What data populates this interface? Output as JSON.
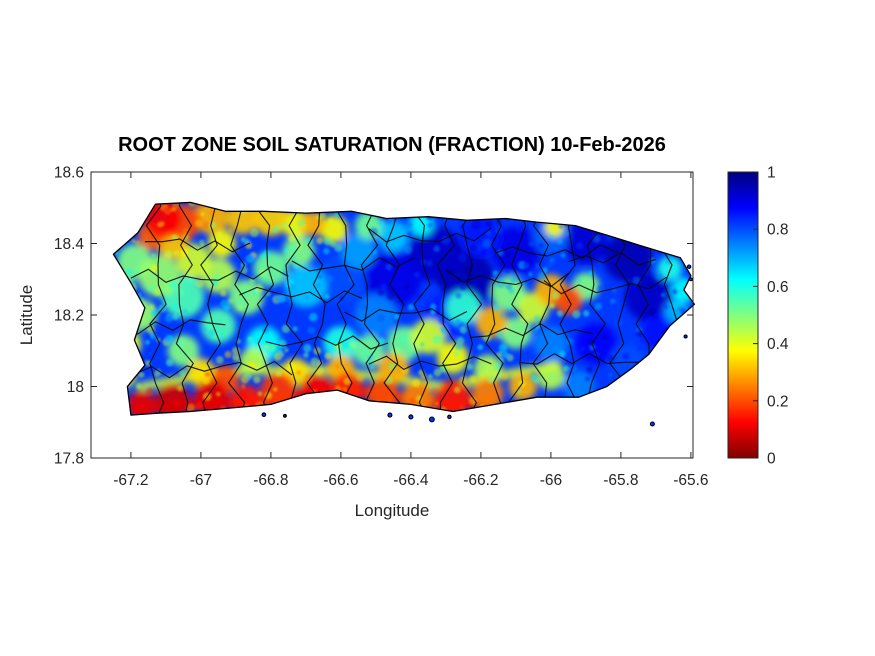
{
  "figure": {
    "background": "#ffffff",
    "axis_color": "#262626",
    "title_color": "#000000"
  },
  "chart_data": {
    "type": "heatmap",
    "subtype": "geographic-map",
    "map_region": "Puerto Rico",
    "title": "ROOT ZONE SOIL SATURATION (FRACTION) 10-Feb-2026",
    "xlabel": "Longitude",
    "ylabel": "Latitude",
    "xlim": [
      -67.314,
      -65.594
    ],
    "ylim": [
      17.8,
      18.6
    ],
    "xticks": [
      -67.2,
      -67,
      -66.8,
      -66.6,
      -66.4,
      -66.2,
      -66,
      -65.8,
      -65.6
    ],
    "xtick_labels": [
      "-67.2",
      "-67",
      "-66.8",
      "-66.6",
      "-66.4",
      "-66.2",
      "-66",
      "-65.8",
      "-65.6"
    ],
    "yticks": [
      18.6,
      18.4,
      18.2,
      18,
      17.8
    ],
    "ytick_labels": [
      "18.6",
      "18.4",
      "18.2",
      "18",
      "17.8"
    ],
    "grid": false,
    "colorbar": {
      "min": 0,
      "max": 1,
      "ticks": [
        1,
        0.8,
        0.6,
        0.4,
        0.2,
        0
      ],
      "tick_labels": [
        "1",
        "0.8",
        "0.6",
        "0.4",
        "0.2",
        "0"
      ],
      "colormap": "jet-reversed (0=dark red, 1=dark blue)",
      "position": "right"
    },
    "base_saturation": 0.82,
    "island_outline": [
      [
        -67.25,
        18.37
      ],
      [
        -67.18,
        18.43
      ],
      [
        -67.13,
        18.51
      ],
      [
        -67.03,
        18.515
      ],
      [
        -66.93,
        18.49
      ],
      [
        -66.82,
        18.49
      ],
      [
        -66.7,
        18.485
      ],
      [
        -66.57,
        18.49
      ],
      [
        -66.47,
        18.47
      ],
      [
        -66.35,
        18.475
      ],
      [
        -66.24,
        18.465
      ],
      [
        -66.13,
        18.47
      ],
      [
        -66.04,
        18.46
      ],
      [
        -65.93,
        18.45
      ],
      [
        -65.83,
        18.42
      ],
      [
        -65.73,
        18.39
      ],
      [
        -65.63,
        18.36
      ],
      [
        -65.6,
        18.31
      ],
      [
        -65.62,
        18.27
      ],
      [
        -65.59,
        18.23
      ],
      [
        -65.66,
        18.17
      ],
      [
        -65.72,
        18.09
      ],
      [
        -65.77,
        18.05
      ],
      [
        -65.84,
        18.0
      ],
      [
        -65.92,
        17.97
      ],
      [
        -66.04,
        17.97
      ],
      [
        -66.16,
        17.95
      ],
      [
        -66.28,
        17.93
      ],
      [
        -66.4,
        17.95
      ],
      [
        -66.52,
        17.96
      ],
      [
        -66.61,
        17.99
      ],
      [
        -66.7,
        17.98
      ],
      [
        -66.8,
        17.95
      ],
      [
        -66.91,
        17.94
      ],
      [
        -67.03,
        17.93
      ],
      [
        -67.13,
        17.925
      ],
      [
        -67.2,
        17.92
      ],
      [
        -67.21,
        18.0
      ],
      [
        -67.16,
        18.06
      ],
      [
        -67.19,
        18.13
      ],
      [
        -67.16,
        18.22
      ],
      [
        -67.2,
        18.29
      ],
      [
        -67.25,
        18.37
      ]
    ],
    "islets": [
      [
        -66.46,
        17.92,
        2
      ],
      [
        -66.4,
        17.915,
        2
      ],
      [
        -66.34,
        17.908,
        2.4
      ],
      [
        -66.29,
        17.915,
        1.7
      ],
      [
        -65.71,
        17.895,
        2
      ],
      [
        -66.82,
        17.921,
        1.8
      ],
      [
        -66.76,
        17.918,
        1.4
      ],
      [
        -65.605,
        18.335,
        1.7
      ],
      [
        -65.6,
        18.3,
        1.4
      ],
      [
        -65.615,
        18.14,
        1.5
      ]
    ],
    "heat_blobs": [
      [
        -67.11,
        18.47,
        0.12,
        0.055
      ],
      [
        -67.14,
        18.42,
        0.22,
        0.04
      ],
      [
        -67.05,
        18.46,
        0.2,
        0.05
      ],
      [
        -66.97,
        18.475,
        0.3,
        0.05
      ],
      [
        -66.88,
        18.47,
        0.32,
        0.045
      ],
      [
        -66.8,
        18.47,
        0.33,
        0.05
      ],
      [
        -66.73,
        18.455,
        0.38,
        0.04
      ],
      [
        -67.08,
        18.4,
        0.32,
        0.045
      ],
      [
        -67.19,
        18.35,
        0.5,
        0.05
      ],
      [
        -67.23,
        18.28,
        0.52,
        0.04
      ],
      [
        -67.12,
        18.31,
        0.48,
        0.06
      ],
      [
        -67.02,
        18.35,
        0.42,
        0.05
      ],
      [
        -66.94,
        18.4,
        0.38,
        0.04
      ],
      [
        -66.95,
        18.31,
        0.45,
        0.05
      ],
      [
        -67.05,
        18.25,
        0.55,
        0.06
      ],
      [
        -67.17,
        18.2,
        0.48,
        0.045
      ],
      [
        -67.21,
        18.12,
        0.42,
        0.04
      ],
      [
        -67.22,
        18.03,
        0.4,
        0.035
      ],
      [
        -66.87,
        18.25,
        0.5,
        0.05
      ],
      [
        -66.8,
        18.33,
        0.52,
        0.05
      ],
      [
        -66.95,
        18.17,
        0.55,
        0.05
      ],
      [
        -66.82,
        18.12,
        0.62,
        0.05
      ],
      [
        -67.05,
        18.1,
        0.5,
        0.045
      ],
      [
        -66.7,
        18.28,
        0.68,
        0.06
      ],
      [
        -66.72,
        18.38,
        0.5,
        0.045
      ],
      [
        -66.62,
        18.44,
        0.38,
        0.04
      ],
      [
        -66.68,
        18.455,
        0.3,
        0.035
      ],
      [
        -66.52,
        18.45,
        0.52,
        0.04
      ],
      [
        -66.37,
        18.455,
        0.62,
        0.035
      ],
      [
        -66.45,
        18.42,
        0.68,
        0.045
      ],
      [
        -66.6,
        18.3,
        0.8,
        0.07
      ],
      [
        -66.55,
        18.38,
        0.72,
        0.05
      ],
      [
        -66.45,
        18.3,
        0.9,
        0.08
      ],
      [
        -66.33,
        18.37,
        0.93,
        0.08
      ],
      [
        -66.2,
        18.42,
        0.85,
        0.06
      ],
      [
        -66.24,
        18.3,
        0.95,
        0.08
      ],
      [
        -66.1,
        18.38,
        0.9,
        0.07
      ],
      [
        -66.3,
        18.2,
        0.85,
        0.06
      ],
      [
        -66.5,
        18.2,
        0.75,
        0.06
      ],
      [
        -66.6,
        18.12,
        0.6,
        0.05
      ],
      [
        -66.42,
        18.12,
        0.52,
        0.05
      ],
      [
        -66.0,
        18.42,
        0.78,
        0.05
      ],
      [
        -65.99,
        18.445,
        0.38,
        0.028
      ],
      [
        -65.9,
        18.4,
        0.92,
        0.06
      ],
      [
        -65.78,
        18.36,
        0.95,
        0.07
      ],
      [
        -65.72,
        18.25,
        0.93,
        0.07
      ],
      [
        -65.68,
        18.15,
        0.86,
        0.06
      ],
      [
        -65.87,
        18.12,
        0.88,
        0.06
      ],
      [
        -65.78,
        18.07,
        0.8,
        0.05
      ],
      [
        -66.0,
        18.12,
        0.75,
        0.05
      ],
      [
        -65.92,
        18.0,
        0.75,
        0.045
      ],
      [
        -65.66,
        18.33,
        0.6,
        0.035
      ],
      [
        -65.62,
        18.27,
        0.62,
        0.035
      ],
      [
        -65.64,
        18.21,
        0.7,
        0.035
      ],
      [
        -65.95,
        18.24,
        0.2,
        0.04
      ],
      [
        -66.0,
        18.27,
        0.3,
        0.045
      ],
      [
        -66.05,
        18.22,
        0.42,
        0.045
      ],
      [
        -65.9,
        18.28,
        0.5,
        0.04
      ],
      [
        -66.12,
        18.26,
        0.5,
        0.05
      ],
      [
        -66.17,
        18.18,
        0.3,
        0.045
      ],
      [
        -66.25,
        18.22,
        0.58,
        0.05
      ],
      [
        -66.1,
        18.15,
        0.5,
        0.045
      ],
      [
        -66.35,
        18.14,
        0.42,
        0.05
      ],
      [
        -66.28,
        18.08,
        0.38,
        0.045
      ],
      [
        -66.45,
        18.05,
        0.3,
        0.045
      ],
      [
        -66.18,
        18.05,
        0.45,
        0.04
      ],
      [
        -66.52,
        18.1,
        0.52,
        0.045
      ],
      [
        -67.17,
        17.95,
        0.1,
        0.04
      ],
      [
        -67.08,
        17.96,
        0.08,
        0.05
      ],
      [
        -66.97,
        17.97,
        0.1,
        0.05
      ],
      [
        -66.93,
        18.02,
        0.2,
        0.04
      ],
      [
        -66.87,
        17.96,
        0.15,
        0.045
      ],
      [
        -66.78,
        17.99,
        0.18,
        0.05
      ],
      [
        -66.67,
        17.99,
        0.12,
        0.045
      ],
      [
        -66.58,
        17.995,
        0.16,
        0.045
      ],
      [
        -66.6,
        18.05,
        0.3,
        0.04
      ],
      [
        -66.48,
        17.98,
        0.2,
        0.045
      ],
      [
        -66.38,
        17.97,
        0.25,
        0.045
      ],
      [
        -66.28,
        17.97,
        0.15,
        0.05
      ],
      [
        -66.18,
        17.98,
        0.25,
        0.045
      ],
      [
        -66.08,
        18.0,
        0.3,
        0.04
      ],
      [
        -66.0,
        18.03,
        0.45,
        0.04
      ],
      [
        -66.73,
        18.04,
        0.35,
        0.04
      ],
      [
        -66.85,
        18.07,
        0.45,
        0.04
      ],
      [
        -67.0,
        18.04,
        0.35,
        0.04
      ]
    ],
    "heat_bands": [
      {
        "v": 0.1,
        "w": 11,
        "pts": [
          [
            -67.19,
            17.935
          ],
          [
            -67.0,
            17.95
          ],
          [
            -66.85,
            17.955
          ],
          [
            -66.6,
            17.995
          ],
          [
            -66.45,
            17.97
          ],
          [
            -66.3,
            17.945
          ],
          [
            -66.17,
            17.96
          ]
        ]
      },
      {
        "v": 0.42,
        "w": 8,
        "pts": [
          [
            -67.17,
            18.0
          ],
          [
            -66.95,
            18.04
          ],
          [
            -66.7,
            18.05
          ],
          [
            -66.5,
            18.03
          ],
          [
            -66.3,
            18.0
          ],
          [
            -66.1,
            18.04
          ],
          [
            -65.98,
            18.06
          ]
        ]
      }
    ],
    "boundary_verticals": [
      -67.125,
      -67.05,
      -66.97,
      -66.89,
      -66.815,
      -66.74,
      -66.665,
      -66.59,
      -66.52,
      -66.445,
      -66.37,
      -66.3,
      -66.23,
      -66.16,
      -66.09,
      -66.02,
      -65.95,
      -65.875,
      -65.8,
      -65.73,
      -65.66
    ],
    "boundary_horizontals": [
      [
        18.4,
        -67.16,
        -66.82
      ],
      [
        18.31,
        -67.2,
        -66.74
      ],
      [
        18.17,
        -67.23,
        -66.89
      ],
      [
        18.05,
        -67.19,
        -66.74
      ],
      [
        18.26,
        -66.89,
        -66.52
      ],
      [
        18.34,
        -66.74,
        -66.37
      ],
      [
        18.12,
        -66.815,
        -66.445
      ],
      [
        18.2,
        -66.59,
        -66.23
      ],
      [
        18.42,
        -66.52,
        -66.16
      ],
      [
        18.07,
        -66.52,
        -66.16
      ],
      [
        18.3,
        -66.3,
        -65.95
      ],
      [
        18.38,
        -66.16,
        -65.8
      ],
      [
        18.15,
        -66.23,
        -65.875
      ],
      [
        18.28,
        -66.02,
        -65.66
      ],
      [
        18.07,
        -66.09,
        -65.73
      ],
      [
        18.35,
        -65.95,
        -65.66
      ]
    ]
  }
}
